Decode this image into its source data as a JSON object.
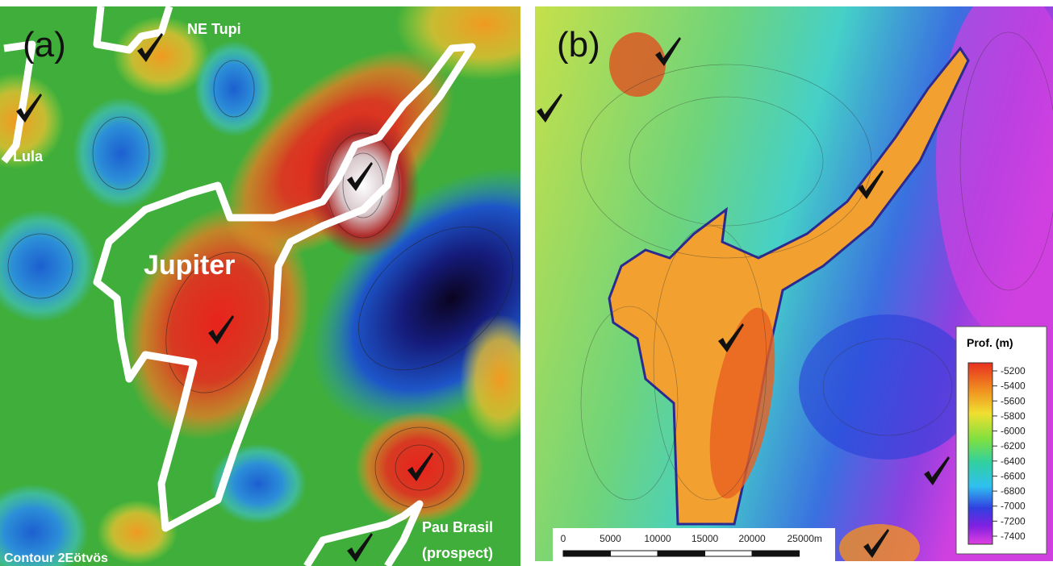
{
  "panel_a": {
    "label": "(a)",
    "places": [
      "NE Tupi",
      "Lula",
      "Jupiter",
      "Pau Brasil",
      "(prospect)"
    ],
    "contour_note": "Contour 2Eötvös"
  },
  "panel_b": {
    "label": "(b)",
    "legend": {
      "title": "Prof. (m)",
      "ticks": [
        -5200,
        -5400,
        -5600,
        -5800,
        -6000,
        -6200,
        -6400,
        -6600,
        -6800,
        -7000,
        -7200,
        -7400
      ]
    },
    "scale_bar": {
      "ticks": [
        0,
        5000,
        10000,
        15000,
        20000,
        {
          "value": 25000,
          "label": "25000m"
        }
      ]
    }
  }
}
